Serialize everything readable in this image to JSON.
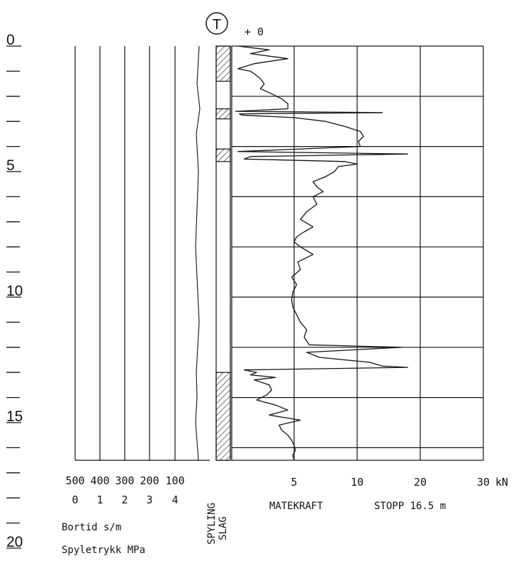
{
  "header": {
    "symbol": "T",
    "offset": "+ 0"
  },
  "depth_axis": {
    "labels": [
      "0",
      "5",
      "10",
      "15",
      "20"
    ]
  },
  "left_panel": {
    "bortid_ticks": [
      "500",
      "400",
      "300",
      "200",
      "100"
    ],
    "spyletrykk_ticks": [
      "0",
      "1",
      "2",
      "3",
      "4"
    ],
    "bortid_label": "Bortid s/m",
    "spyletrykk_label": "Spyletrykk MPa"
  },
  "columns": {
    "spyling": "SPYLING",
    "slag": "SLAG"
  },
  "right_panel": {
    "ticks": [
      "5",
      "10",
      "20",
      "30"
    ],
    "unit": "kN",
    "label": "MATEKRAFT",
    "stop_label": "STOPP 16.5 m"
  },
  "chart_data": {
    "type": "line",
    "depth_axis": {
      "label": "",
      "range": [
        0,
        20
      ],
      "unit": "m",
      "reversed": true
    },
    "series": [
      {
        "name": "MATEKRAFT",
        "unit": "kN",
        "scale": "nonlinear",
        "axis_ticks": [
          5,
          10,
          20,
          30
        ],
        "depth": [
          0,
          0.15,
          0.3,
          0.5,
          0.7,
          0.9,
          1.0,
          1.1,
          1.3,
          1.5,
          1.7,
          1.9,
          2.1,
          2.3,
          2.5,
          2.6,
          2.65,
          2.7,
          2.75,
          2.85,
          3.0,
          3.2,
          3.4,
          3.6,
          3.8,
          4.0,
          4.2,
          4.3,
          4.4,
          4.5,
          4.6,
          4.7,
          4.8,
          5.0,
          5.2,
          5.4,
          5.6,
          5.8,
          6.0,
          6.3,
          6.6,
          6.9,
          7.2,
          7.4,
          7.6,
          7.8,
          8.0,
          8.3,
          8.6,
          8.9,
          9.2,
          9.5,
          9.8,
          10.1,
          10.4,
          10.7,
          11.0,
          11.3,
          11.6,
          11.9,
          12.0,
          12.2,
          12.4,
          12.6,
          12.75,
          12.8,
          12.9,
          13.0,
          13.1,
          13.2,
          13.3,
          13.5,
          13.7,
          13.9,
          14.1,
          14.3,
          14.5,
          14.7,
          14.9,
          15.1,
          15.3,
          15.5,
          15.7,
          15.9,
          16.1,
          16.3,
          16.5
        ],
        "values": [
          0.5,
          3.0,
          1.5,
          4.5,
          1.8,
          0.5,
          1.5,
          1.8,
          2.3,
          2.6,
          2.3,
          3.2,
          4.0,
          4.5,
          4.5,
          0.3,
          14.0,
          0.6,
          0.8,
          5.0,
          7.5,
          9.0,
          10.5,
          11.0,
          10.2,
          10.5,
          0.5,
          18.0,
          1.5,
          1.0,
          9.0,
          10.0,
          8.5,
          8.2,
          7.5,
          6.5,
          6.8,
          7.3,
          6.5,
          6.8,
          6.0,
          5.5,
          6.5,
          5.8,
          5.2,
          5.0,
          5.5,
          6.5,
          5.3,
          5.5,
          4.8,
          5.2,
          4.9,
          4.8,
          4.9,
          5.2,
          5.5,
          6.0,
          5.8,
          6.2,
          17.0,
          6.0,
          7.0,
          12.0,
          14.0,
          18.0,
          1.0,
          2.0,
          1.5,
          3.5,
          1.8,
          3.0,
          3.2,
          2.8,
          2.0,
          3.5,
          4.5,
          3.0,
          5.5,
          3.8,
          4.0,
          4.5,
          4.8,
          5.0,
          5.1,
          4.9,
          5.0
        ]
      },
      {
        "name": "Bortid s/m",
        "unit": "s/m",
        "axis_ticks": [
          500,
          400,
          300,
          200,
          100
        ],
        "depth": [
          0,
          1.5,
          2.5,
          3.5,
          5.0,
          8.0,
          11.0,
          13.0,
          14.0,
          15.0,
          16.5
        ],
        "values": [
          3,
          2,
          2,
          3,
          4,
          4,
          3,
          3,
          6,
          4,
          4
        ]
      }
    ],
    "slag_intervals": [
      [
        0,
        1.4
      ],
      [
        2.5,
        2.9
      ],
      [
        4.1,
        4.6
      ],
      [
        13.0,
        16.5
      ]
    ],
    "stop_depth": 16.5,
    "grid": true
  }
}
